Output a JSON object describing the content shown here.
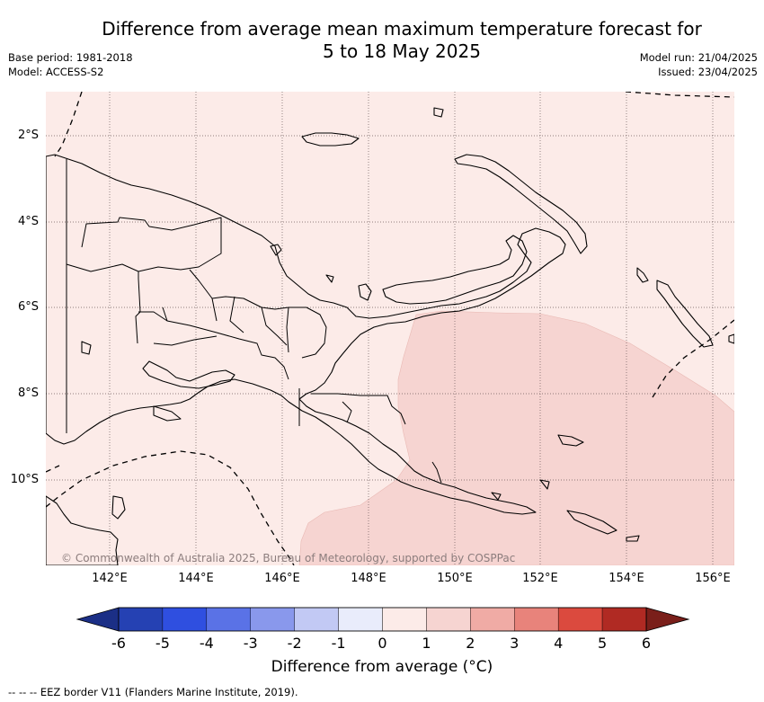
{
  "title_line1": "Difference from average mean maximum temperature forecast for",
  "title_line2": "5 to 18 May 2025",
  "base_period": "Base period: 1981-2018",
  "model": "Model: ACCESS-S2",
  "model_run": "Model run: 21/04/2025",
  "issued": "Issued: 23/04/2025",
  "lat_labels": [
    "2°S",
    "4°S",
    "6°S",
    "8°S",
    "10°S"
  ],
  "lon_labels": [
    "142°E",
    "144°E",
    "146°E",
    "148°E",
    "150°E",
    "152°E",
    "154°E",
    "156°E"
  ],
  "copyright": "© Commonwealth of Australia 2025, Bureau of Meteorology, supported by COSPPac",
  "colorbar": {
    "ticks": [
      "-6",
      "-5",
      "-4",
      "-3",
      "-2",
      "-1",
      "0",
      "1",
      "2",
      "3",
      "4",
      "5",
      "6"
    ],
    "colors": [
      "#2541b3",
      "#2f4fe0",
      "#5a72e6",
      "#8998ec",
      "#c2c9f4",
      "#e9ecfb",
      "#fcebe8",
      "#f6d4d1",
      "#f0aba5",
      "#e8837b",
      "#db4a3e",
      "#b02a23"
    ],
    "low_extend_color": "#1b2f86",
    "high_extend_color": "#7a1f1a",
    "label": "Difference from average (°C)"
  },
  "map_fill": {
    "anomaly_0_to_1": "#fcebe8",
    "anomaly_1_to_2": "#f6d4d1"
  },
  "footnote": "--  --  -- EEZ border V11 (Flanders Marine Institute, 2019)."
}
